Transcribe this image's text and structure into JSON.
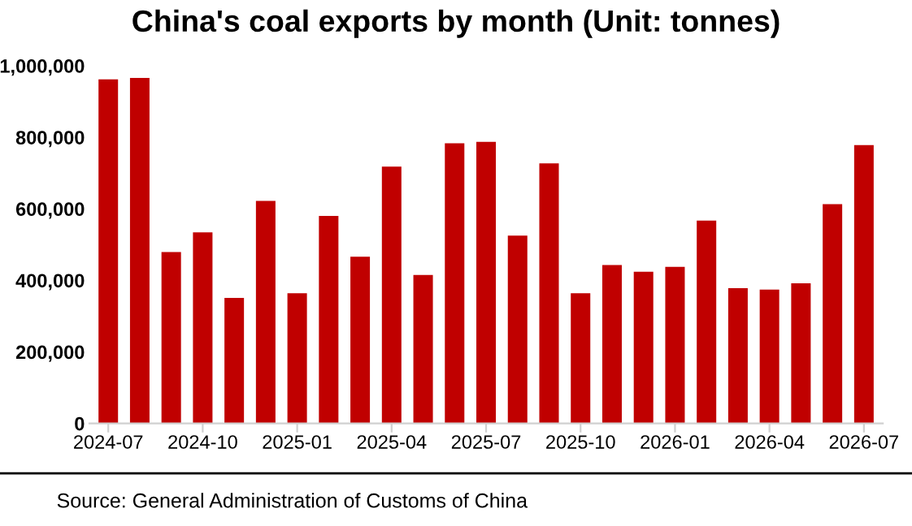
{
  "chart_data": {
    "type": "bar",
    "title": "China's coal exports by month (Unit: tonnes)",
    "categories": [
      "2024-07",
      null,
      null,
      "2024-10",
      null,
      null,
      "2025-01",
      null,
      null,
      "2025-04",
      null,
      null,
      "2025-07",
      null,
      null,
      "2025-10",
      null,
      null,
      "2026-01",
      null,
      null,
      "2026-04",
      null,
      null,
      "2026-07"
    ],
    "values": [
      962000,
      966000,
      479000,
      534000,
      351000,
      622000,
      364000,
      580000,
      466000,
      718000,
      415000,
      783000,
      787000,
      525000,
      727000,
      364000,
      443000,
      424000,
      438000,
      567000,
      378000,
      374000,
      392000,
      613000,
      778000
    ],
    "color": "#c00000",
    "ylim": [
      0,
      1000000
    ],
    "yticks": [
      {
        "value": 0,
        "label": "0"
      },
      {
        "value": 200000,
        "label": "200,000"
      },
      {
        "value": 400000,
        "label": "400,000"
      },
      {
        "value": 600000,
        "label": "600,000"
      },
      {
        "value": 800000,
        "label": "800,000"
      },
      {
        "value": 1000000,
        "label": "1,000,000"
      }
    ],
    "grid": false,
    "annotations": [
      "Source: General Administration of Customs of China"
    ]
  }
}
